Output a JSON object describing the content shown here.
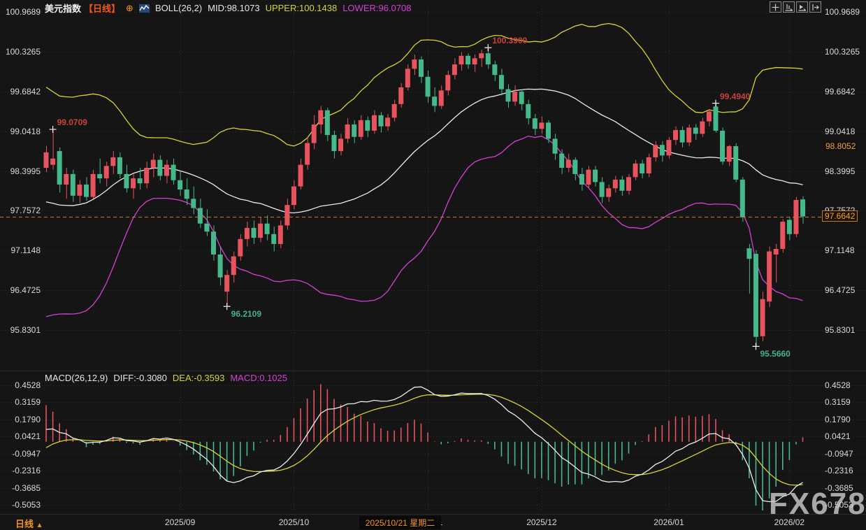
{
  "title": {
    "symbol": "美元指数",
    "period_tag": "【日线】",
    "expand_icon_glyph": "⊕",
    "indicator": "BOLL(26,2)",
    "mid": "MID:98.1073",
    "upper": "UPPER:100.1438",
    "lower": "LOWER:96.0708"
  },
  "toolbar": {
    "icons": [
      "pan-icon",
      "scale-x-icon",
      "playback-icon",
      "goto-latest-icon"
    ]
  },
  "macd_header": {
    "name": "MACD(26,12,9)",
    "diff": "DIFF:-0.3080",
    "dea": "DEA:-0.3593",
    "macd": "MACD:0.1025"
  },
  "bottom_bar": {
    "period_label": "日线",
    "period_arrow": "▲",
    "crosshair_date": "2025/10/21 星期二"
  },
  "watermark": "FX678",
  "colors": {
    "background": "#151515",
    "grid": "#2e2e2e",
    "axis_text": "#d8d8d8",
    "candle_up": "#e8545d",
    "candle_down": "#46b98c",
    "boll_mid": "#ececec",
    "boll_upper": "#d6d435",
    "boll_lower": "#d63fd6",
    "price_line": "#c87820",
    "accent_orange": "#f5921e",
    "annotation_high": "#cc4137",
    "annotation_low": "#45b289",
    "macd_pos": "#e8545d",
    "macd_neg": "#46b98c",
    "diff_line": "#ececec",
    "dea_line": "#d6d435"
  },
  "chart_data": {
    "type": "candlestick+macd",
    "main": {
      "y_axis_labels": [
        "100.9689",
        "100.3265",
        "99.6842",
        "99.0418",
        "98.3995",
        "97.7572",
        "97.1148",
        "96.4725",
        "95.8301"
      ],
      "right_badges": [
        {
          "label": "98.8052",
          "value": 98.8052,
          "boxed": false
        },
        {
          "label": "97.6642",
          "value": 97.6642,
          "boxed": true
        }
      ],
      "last_price": 97.6642,
      "boll_params": {
        "period": 26,
        "mult": 2
      },
      "annotations": [
        {
          "index": 1,
          "price": 99.0709,
          "label": "99.0709",
          "kind": "high"
        },
        {
          "index": 27,
          "price": 96.2109,
          "label": "96.2109",
          "kind": "low"
        },
        {
          "index": 66,
          "price": 100.39,
          "label": "100.3900",
          "kind": "high"
        },
        {
          "index": 100,
          "price": 99.494,
          "label": "99.4940",
          "kind": "high"
        },
        {
          "index": 106,
          "price": 95.566,
          "label": "95.5660",
          "kind": "low"
        }
      ],
      "warmup_closes": [
        99.5,
        99.2,
        98.9,
        98.5,
        98.1,
        97.7,
        97.3,
        96.9,
        96.6,
        96.4,
        96.3,
        96.4,
        96.6,
        96.9,
        97.3,
        97.7,
        98.0,
        98.3,
        98.5,
        98.7,
        98.8,
        98.8,
        98.8,
        98.7,
        98.7,
        98.6
      ],
      "candles": [
        [
          98.45,
          98.8,
          98.38,
          98.7
        ],
        [
          98.5,
          99.0709,
          98.42,
          98.6
        ],
        [
          98.72,
          98.78,
          98.05,
          98.18
        ],
        [
          98.18,
          98.45,
          97.95,
          98.35
        ],
        [
          98.35,
          98.42,
          97.9,
          98.0
        ],
        [
          98.0,
          98.25,
          97.88,
          98.18
        ],
        [
          98.18,
          98.3,
          97.92,
          97.98
        ],
        [
          97.98,
          98.42,
          97.95,
          98.35
        ],
        [
          98.35,
          98.6,
          98.2,
          98.28
        ],
        [
          98.28,
          98.55,
          98.15,
          98.48
        ],
        [
          98.48,
          98.72,
          98.35,
          98.62
        ],
        [
          98.62,
          98.7,
          98.28,
          98.35
        ],
        [
          98.35,
          98.5,
          98.05,
          98.12
        ],
        [
          98.12,
          98.35,
          97.95,
          98.28
        ],
        [
          98.28,
          98.45,
          98.1,
          98.2
        ],
        [
          98.2,
          98.55,
          98.12,
          98.45
        ],
        [
          98.45,
          98.68,
          98.3,
          98.58
        ],
        [
          98.58,
          98.65,
          98.25,
          98.32
        ],
        [
          98.32,
          98.58,
          98.2,
          98.5
        ],
        [
          98.5,
          98.6,
          98.18,
          98.25
        ],
        [
          98.25,
          98.4,
          98.0,
          98.1
        ],
        [
          98.1,
          98.28,
          97.85,
          97.95
        ],
        [
          97.95,
          98.15,
          97.7,
          97.8
        ],
        [
          97.8,
          97.95,
          97.48,
          97.55
        ],
        [
          97.55,
          97.78,
          97.35,
          97.42
        ],
        [
          97.42,
          97.52,
          96.95,
          97.05
        ],
        [
          97.05,
          97.18,
          96.55,
          96.68
        ],
        [
          96.45,
          96.8,
          96.2109,
          96.72
        ],
        [
          96.72,
          97.1,
          96.6,
          97.02
        ],
        [
          97.02,
          97.38,
          96.95,
          97.3
        ],
        [
          97.3,
          97.58,
          97.18,
          97.48
        ],
        [
          97.48,
          97.6,
          97.22,
          97.32
        ],
        [
          97.32,
          97.65,
          97.25,
          97.55
        ],
        [
          97.55,
          97.68,
          97.28,
          97.38
        ],
        [
          97.38,
          97.5,
          97.1,
          97.22
        ],
        [
          97.22,
          97.6,
          97.15,
          97.52
        ],
        [
          97.52,
          97.95,
          97.45,
          97.85
        ],
        [
          97.85,
          98.25,
          97.78,
          98.15
        ],
        [
          98.15,
          98.6,
          98.1,
          98.5
        ],
        [
          98.5,
          98.95,
          98.42,
          98.85
        ],
        [
          98.85,
          99.3,
          98.75,
          99.15
        ],
        [
          99.15,
          99.45,
          99.0,
          99.38
        ],
        [
          99.38,
          99.42,
          98.88,
          98.98
        ],
        [
          98.98,
          99.05,
          98.6,
          98.72
        ],
        [
          98.72,
          99.0,
          98.65,
          98.92
        ],
        [
          98.92,
          99.25,
          98.85,
          99.15
        ],
        [
          99.15,
          99.22,
          98.85,
          98.95
        ],
        [
          98.95,
          99.3,
          98.9,
          99.22
        ],
        [
          99.22,
          99.28,
          98.95,
          99.05
        ],
        [
          99.05,
          99.38,
          99.0,
          99.3
        ],
        [
          99.3,
          99.35,
          99.02,
          99.12
        ],
        [
          99.12,
          99.32,
          99.05,
          99.26
        ],
        [
          99.26,
          99.55,
          99.2,
          99.48
        ],
        [
          99.48,
          99.82,
          99.42,
          99.75
        ],
        [
          99.75,
          100.12,
          99.7,
          100.05
        ],
        [
          100.05,
          100.28,
          99.95,
          100.2
        ],
        [
          100.2,
          100.25,
          99.82,
          99.92
        ],
        [
          99.92,
          100.02,
          99.5,
          99.6
        ],
        [
          99.6,
          99.75,
          99.35,
          99.45
        ],
        [
          99.45,
          99.78,
          99.4,
          99.7
        ],
        [
          99.7,
          100.02,
          99.62,
          99.95
        ],
        [
          99.95,
          100.22,
          99.88,
          100.12
        ],
        [
          100.12,
          100.32,
          100.02,
          100.26
        ],
        [
          100.26,
          100.3,
          100.05,
          100.12
        ],
        [
          100.12,
          100.28,
          100.0,
          100.22
        ],
        [
          100.22,
          100.36,
          100.08,
          100.3
        ],
        [
          100.3,
          100.39,
          100.05,
          100.12
        ],
        [
          100.12,
          100.18,
          99.85,
          99.95
        ],
        [
          99.95,
          100.05,
          99.62,
          99.72
        ],
        [
          99.72,
          99.8,
          99.42,
          99.52
        ],
        [
          99.52,
          99.78,
          99.45,
          99.68
        ],
        [
          99.68,
          99.72,
          99.38,
          99.48
        ],
        [
          99.48,
          99.55,
          99.15,
          99.25
        ],
        [
          99.25,
          99.32,
          98.98,
          99.08
        ],
        [
          99.08,
          99.28,
          99.0,
          99.18
        ],
        [
          99.18,
          99.22,
          98.85,
          98.92
        ],
        [
          98.92,
          99.0,
          98.58,
          98.68
        ],
        [
          98.68,
          98.75,
          98.35,
          98.45
        ],
        [
          98.45,
          98.68,
          98.38,
          98.58
        ],
        [
          98.58,
          98.62,
          98.25,
          98.35
        ],
        [
          98.35,
          98.45,
          98.08,
          98.18
        ],
        [
          98.18,
          98.48,
          98.12,
          98.42
        ],
        [
          98.42,
          98.48,
          98.15,
          98.22
        ],
        [
          98.22,
          98.3,
          97.88,
          97.98
        ],
        [
          97.98,
          98.18,
          97.9,
          98.12
        ],
        [
          98.12,
          98.32,
          98.05,
          98.26
        ],
        [
          98.26,
          98.32,
          98.0,
          98.08
        ],
        [
          98.08,
          98.35,
          98.02,
          98.3
        ],
        [
          98.3,
          98.58,
          98.25,
          98.52
        ],
        [
          98.52,
          98.58,
          98.28,
          98.36
        ],
        [
          98.36,
          98.68,
          98.3,
          98.62
        ],
        [
          98.62,
          98.88,
          98.55,
          98.82
        ],
        [
          98.82,
          98.88,
          98.55,
          98.65
        ],
        [
          98.65,
          98.95,
          98.6,
          98.9
        ],
        [
          98.9,
          99.12,
          98.82,
          99.06
        ],
        [
          99.06,
          99.12,
          98.78,
          98.86
        ],
        [
          98.86,
          99.15,
          98.8,
          99.1
        ],
        [
          99.1,
          99.16,
          98.9,
          99.0
        ],
        [
          99.0,
          99.26,
          98.95,
          99.2
        ],
        [
          99.2,
          99.4,
          99.12,
          99.36
        ],
        [
          99.44,
          99.494,
          99.02,
          99.05
        ],
        [
          99.05,
          99.1,
          98.5,
          98.55
        ],
        [
          98.55,
          98.82,
          98.48,
          98.8
        ],
        [
          98.8,
          98.85,
          98.22,
          98.26
        ],
        [
          98.26,
          98.3,
          97.58,
          97.65
        ],
        [
          97.15,
          97.22,
          96.42,
          96.98
        ],
        [
          97.06,
          97.12,
          95.566,
          95.72
        ],
        [
          95.73,
          96.45,
          95.65,
          96.33
        ],
        [
          96.29,
          97.18,
          96.2,
          97.1
        ],
        [
          97.05,
          97.22,
          96.6,
          97.14
        ],
        [
          97.14,
          97.62,
          97.08,
          97.58
        ],
        [
          97.61,
          97.66,
          97.28,
          97.38
        ],
        [
          97.38,
          97.98,
          97.33,
          97.93
        ],
        [
          97.94,
          97.99,
          97.55,
          97.6642
        ]
      ]
    },
    "macd": {
      "params": [
        26,
        12,
        9
      ],
      "y_axis_labels": [
        "0.4528",
        "0.3159",
        "0.1790",
        "0.0421",
        "-0.0947",
        "-0.2316",
        "-0.3685",
        "-0.5053"
      ]
    },
    "x_axis": {
      "month_ticks": [
        {
          "index": 20,
          "label": "2025/09"
        },
        {
          "index": 37,
          "label": "2025/10"
        },
        {
          "index": 57,
          "label": "2025/11"
        },
        {
          "index": 74,
          "label": "2025/12"
        },
        {
          "index": 93,
          "label": "2026/01"
        },
        {
          "index": 111,
          "label": "2026/02"
        }
      ],
      "partial_covered_label_index": 2
    }
  }
}
